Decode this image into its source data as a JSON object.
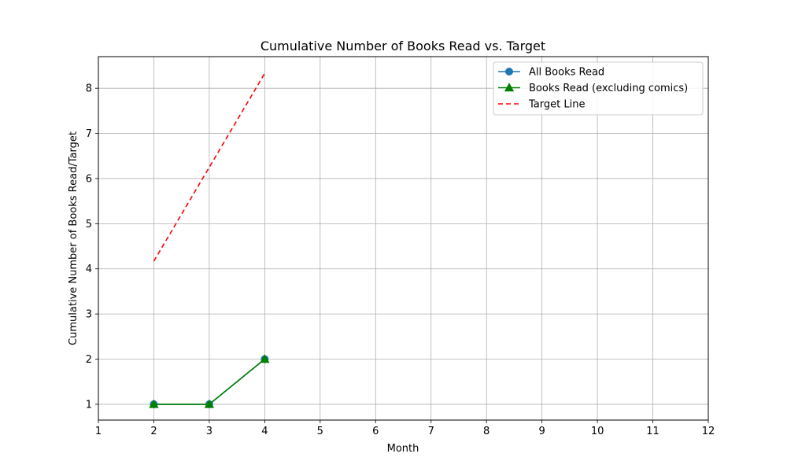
{
  "chart_data": {
    "type": "line",
    "title": "Cumulative Number of Books Read vs. Target",
    "xlabel": "Month",
    "ylabel": "Cumulative Number of Books Read/Target",
    "xlim": [
      1,
      12
    ],
    "ylim": [
      0.65,
      8.7
    ],
    "xticks": [
      1,
      2,
      3,
      4,
      5,
      6,
      7,
      8,
      9,
      10,
      11,
      12
    ],
    "yticks": [
      1,
      2,
      3,
      4,
      5,
      6,
      7,
      8
    ],
    "grid": true,
    "legend_position": "top-right",
    "series": [
      {
        "name": "All Books Read",
        "color": "#1f77b4",
        "marker": "circle",
        "line_style": "solid",
        "x": [
          2,
          3,
          4
        ],
        "y": [
          1,
          1,
          2
        ]
      },
      {
        "name": "Books Read (excluding comics)",
        "color": "#008000",
        "marker": "triangle",
        "line_style": "solid",
        "x": [
          2,
          3,
          4
        ],
        "y": [
          1,
          1,
          2
        ]
      },
      {
        "name": "Target Line",
        "color": "#ff0000",
        "marker": "none",
        "line_style": "dashed",
        "x": [
          2,
          3,
          4
        ],
        "y": [
          4.17,
          6.25,
          8.33
        ]
      }
    ]
  }
}
